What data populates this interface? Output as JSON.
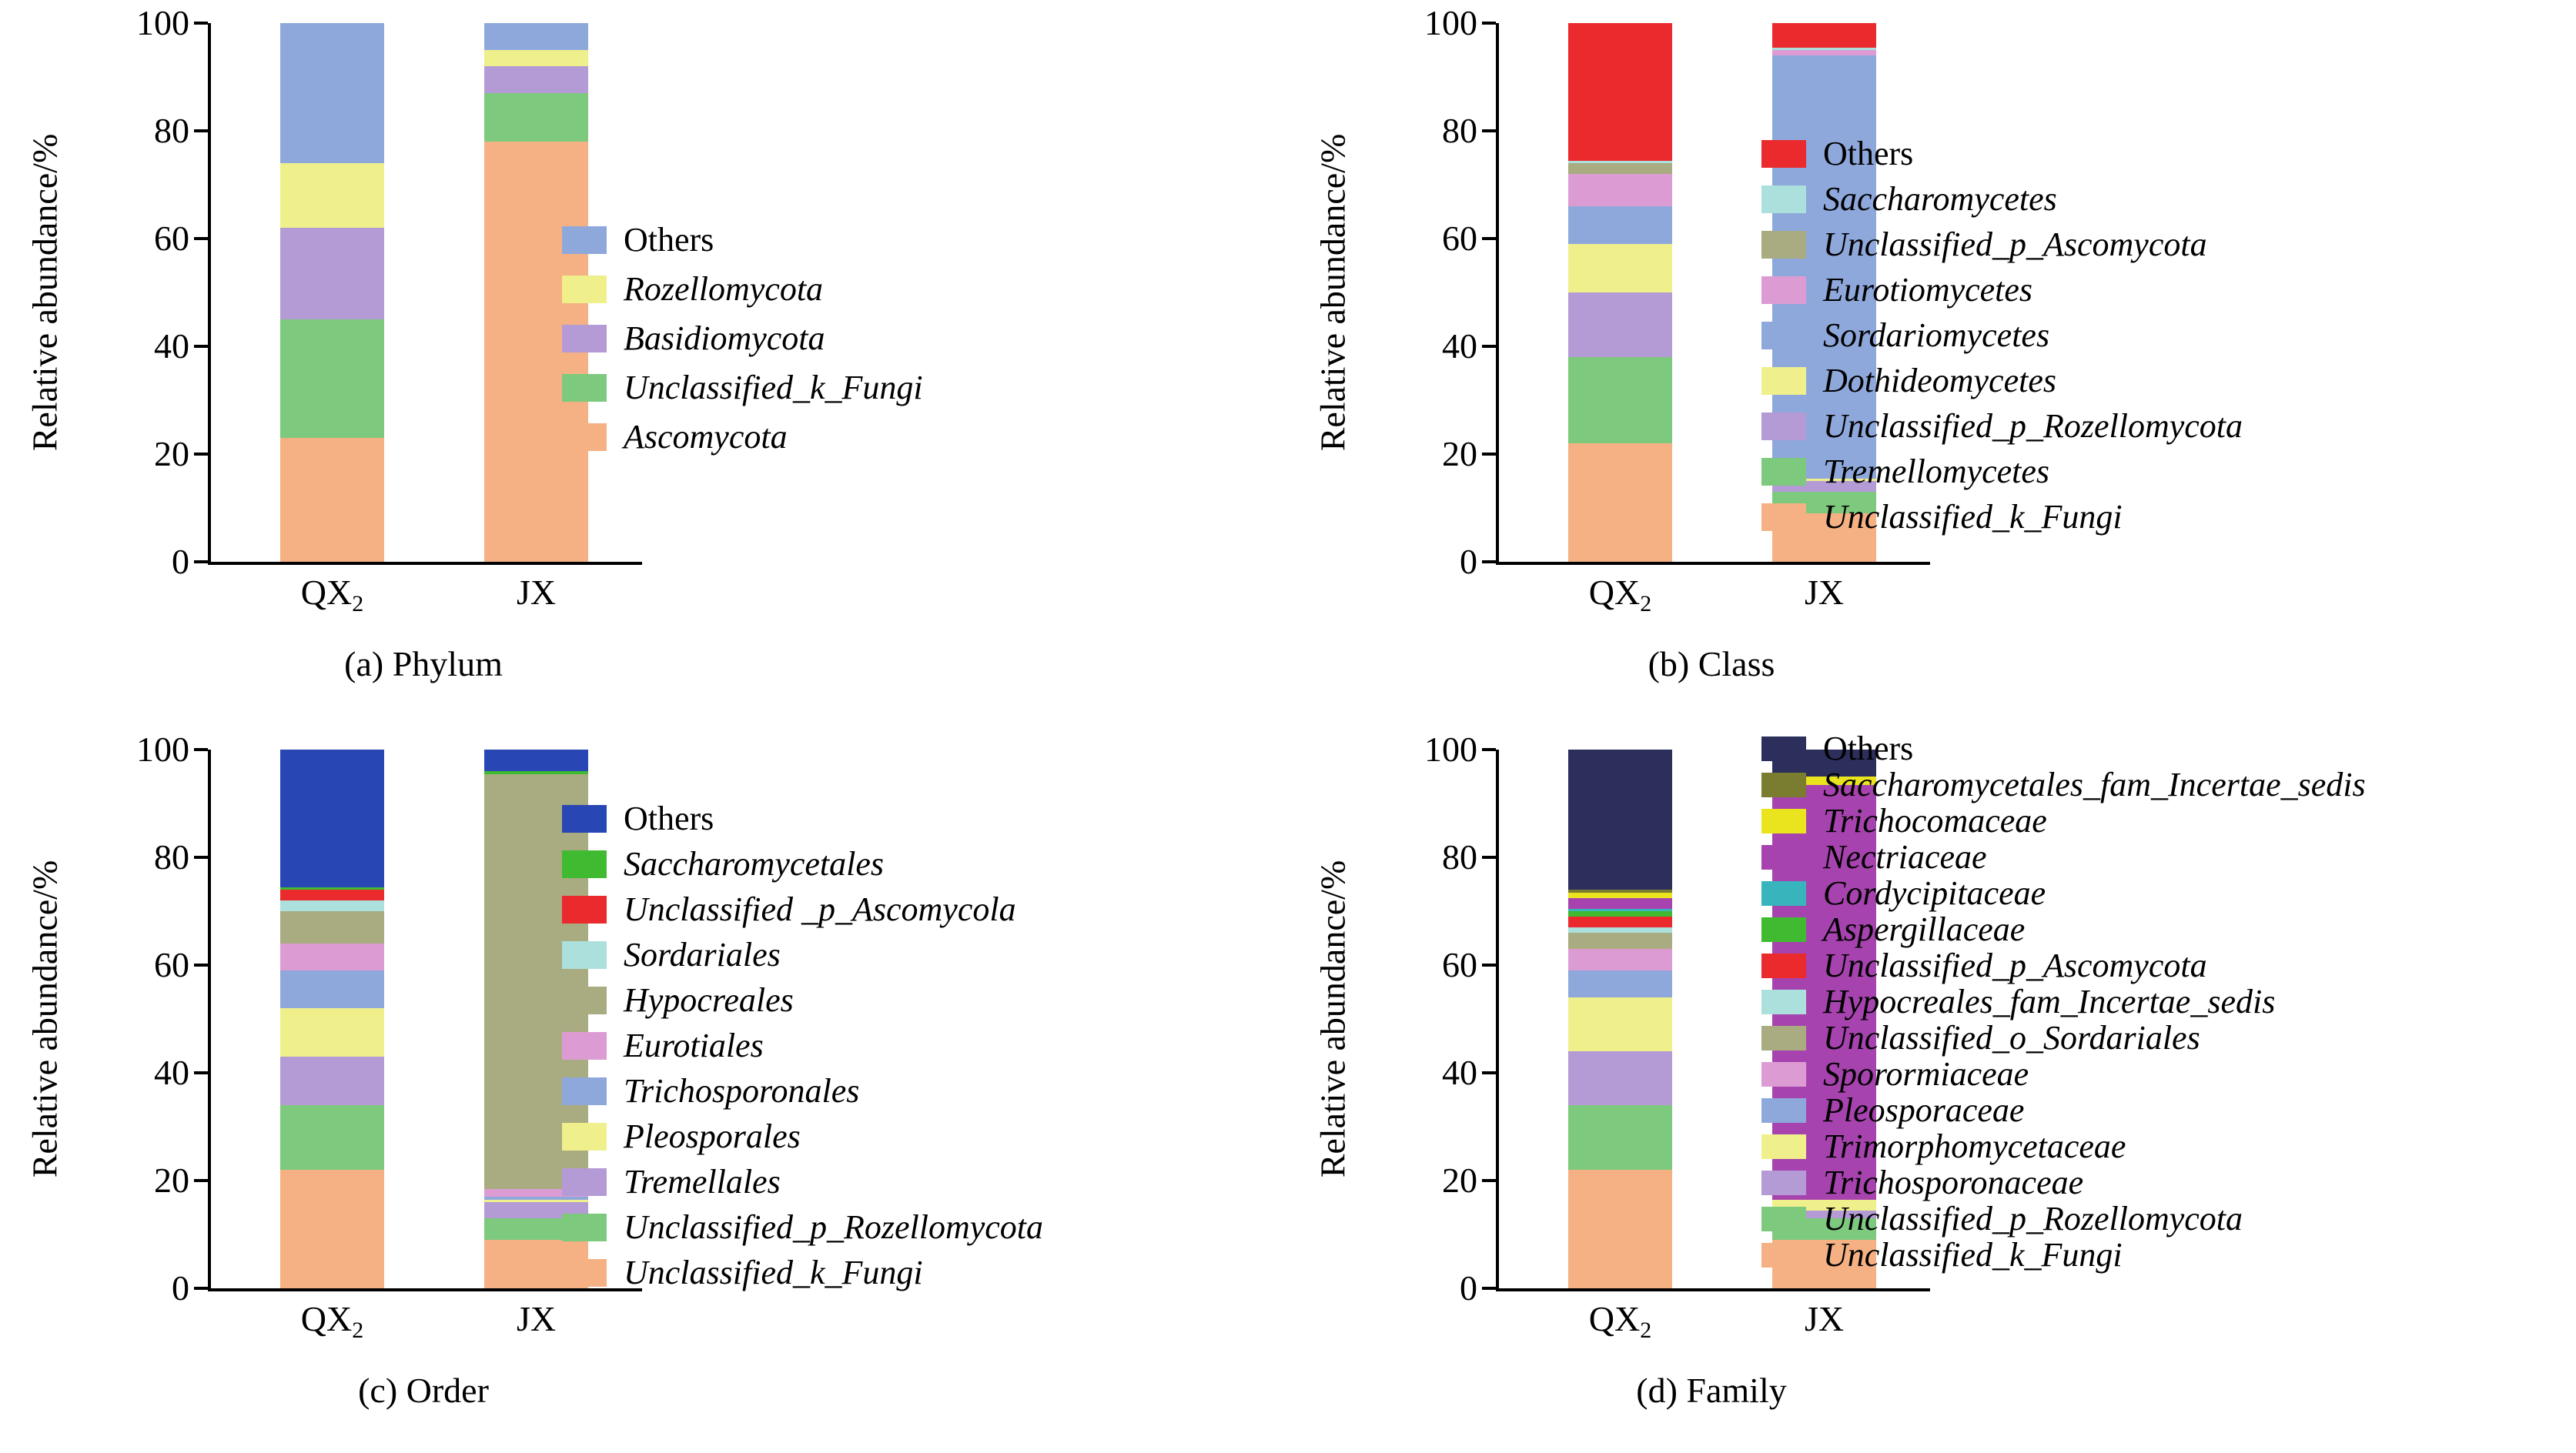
{
  "figure": {
    "background": "#FFFFFF",
    "text_color": "#000000"
  },
  "chart_data": [
    {
      "id": "phylum",
      "type": "bar",
      "stacked": true,
      "caption": "(a) Phylum",
      "ylabel": "Relative abundance/%",
      "ylim": [
        0,
        100
      ],
      "yticks": [
        0,
        20,
        40,
        60,
        80,
        100
      ],
      "grid": false,
      "legend_position": "right",
      "stack_order": "bottom_to_top",
      "categories": [
        {
          "base": "QX",
          "sub": "2"
        },
        {
          "base": "JX",
          "sub": ""
        }
      ],
      "series": [
        {
          "name": "Ascomycota",
          "italic": true,
          "color": "#F5B183",
          "values": [
            23,
            78
          ]
        },
        {
          "name": "Unclassified_k_Fungi",
          "italic": true,
          "color": "#7DC97E",
          "values": [
            22,
            9
          ]
        },
        {
          "name": "Basidiomycota",
          "italic": true,
          "color": "#B49BD5",
          "values": [
            17,
            5
          ]
        },
        {
          "name": "Rozellomycota",
          "italic": true,
          "color": "#EFEF8B",
          "values": [
            12,
            3
          ]
        },
        {
          "name": "Others",
          "italic": false,
          "color": "#8FA8DC",
          "values": [
            26,
            5
          ]
        }
      ]
    },
    {
      "id": "class",
      "type": "bar",
      "stacked": true,
      "caption": "(b) Class",
      "ylabel": "Relative abundance/%",
      "ylim": [
        0,
        100
      ],
      "yticks": [
        0,
        20,
        40,
        60,
        80,
        100
      ],
      "grid": false,
      "legend_position": "right",
      "stack_order": "bottom_to_top",
      "categories": [
        {
          "base": "QX",
          "sub": "2"
        },
        {
          "base": "JX",
          "sub": ""
        }
      ],
      "series": [
        {
          "name": "Unclassified_k_Fungi",
          "italic": true,
          "color": "#F5B183",
          "values": [
            22,
            9
          ]
        },
        {
          "name": "Tremellomycetes",
          "italic": true,
          "color": "#7DC97E",
          "values": [
            16,
            4
          ]
        },
        {
          "name": "Unclassified_p_Rozellomycota",
          "italic": true,
          "color": "#B49BD5",
          "values": [
            12,
            2
          ]
        },
        {
          "name": "Dothideomycetes",
          "italic": true,
          "color": "#EFEF8B",
          "values": [
            9,
            0.5
          ]
        },
        {
          "name": "Sordariomycetes",
          "italic": true,
          "color": "#8FA8DC",
          "values": [
            7,
            78.5
          ]
        },
        {
          "name": "Eurotiomycetes",
          "italic": true,
          "color": "#DC9CD3",
          "values": [
            6,
            1
          ]
        },
        {
          "name": "Unclassified_p_Ascomycota",
          "italic": true,
          "color": "#A9AB80",
          "values": [
            2,
            0
          ]
        },
        {
          "name": "Saccharomycetes",
          "italic": true,
          "color": "#ABE0DD",
          "values": [
            0.5,
            0.5
          ]
        },
        {
          "name": "Others",
          "italic": false,
          "color": "#EB2A2E",
          "values": [
            25.5,
            4.5
          ]
        }
      ]
    },
    {
      "id": "order",
      "type": "bar",
      "stacked": true,
      "caption": "(c) Order",
      "ylabel": "Relative abundance/%",
      "ylim": [
        0,
        100
      ],
      "yticks": [
        0,
        20,
        40,
        60,
        80,
        100
      ],
      "grid": false,
      "legend_position": "right",
      "stack_order": "bottom_to_top",
      "categories": [
        {
          "base": "QX",
          "sub": "2"
        },
        {
          "base": "JX",
          "sub": ""
        }
      ],
      "series": [
        {
          "name": "Unclassified_k_Fungi",
          "italic": true,
          "color": "#F5B183",
          "values": [
            22,
            9
          ]
        },
        {
          "name": "Unclassified_p_Rozellomycota",
          "italic": true,
          "color": "#7DC97E",
          "values": [
            12,
            4
          ]
        },
        {
          "name": "Tremellales",
          "italic": true,
          "color": "#B49BD5",
          "values": [
            9,
            3
          ]
        },
        {
          "name": "Pleosporales",
          "italic": true,
          "color": "#EFEF8B",
          "values": [
            9,
            0.5
          ]
        },
        {
          "name": "Trichosporonales",
          "italic": true,
          "color": "#8FA8DC",
          "values": [
            7,
            0.5
          ]
        },
        {
          "name": "Eurotiales",
          "italic": true,
          "color": "#DC9CD3",
          "values": [
            5,
            1.5
          ]
        },
        {
          "name": "Hypocreales",
          "italic": true,
          "color": "#A9AB80",
          "values": [
            6,
            77
          ]
        },
        {
          "name": "Sordariales",
          "italic": true,
          "color": "#ABE0DD",
          "values": [
            2,
            0
          ]
        },
        {
          "name": "Unclassified _p_Ascomycola",
          "italic": true,
          "color": "#EB2A2E",
          "values": [
            2,
            0
          ]
        },
        {
          "name": "Saccharomycetales",
          "italic": true,
          "color": "#3FBA31",
          "values": [
            0.5,
            0.5
          ]
        },
        {
          "name": "Others",
          "italic": false,
          "color": "#2847B4",
          "values": [
            25.5,
            4
          ]
        }
      ]
    },
    {
      "id": "family",
      "type": "bar",
      "stacked": true,
      "caption": "(d) Family",
      "ylabel": "Relative abundance/%",
      "ylim": [
        0,
        100
      ],
      "yticks": [
        0,
        20,
        40,
        60,
        80,
        100
      ],
      "grid": false,
      "legend_position": "right",
      "stack_order": "bottom_to_top",
      "categories": [
        {
          "base": "QX",
          "sub": "2"
        },
        {
          "base": "JX",
          "sub": ""
        }
      ],
      "series": [
        {
          "name": "Unclassified_k_Fungi",
          "italic": true,
          "color": "#F5B183",
          "values": [
            22,
            9
          ]
        },
        {
          "name": "Unclassified_p_Rozellomycota",
          "italic": true,
          "color": "#7DC97E",
          "values": [
            12,
            4
          ]
        },
        {
          "name": "Trichosporonaceae",
          "italic": true,
          "color": "#B49BD5",
          "values": [
            10,
            1.5
          ]
        },
        {
          "name": "Trimorphomycetaceae",
          "italic": true,
          "color": "#EFEF8B",
          "values": [
            10,
            2
          ]
        },
        {
          "name": "Pleosporaceae",
          "italic": true,
          "color": "#8FA8DC",
          "values": [
            5,
            0
          ]
        },
        {
          "name": "Sporormiaceae",
          "italic": true,
          "color": "#DC9CD3",
          "values": [
            4,
            0
          ]
        },
        {
          "name": "Unclassified_o_Sordariales",
          "italic": true,
          "color": "#A9AB80",
          "values": [
            3,
            0
          ]
        },
        {
          "name": "Hypocreales_fam_Incertae_sedis",
          "italic": true,
          "color": "#ABE0DD",
          "values": [
            1,
            0
          ]
        },
        {
          "name": "Unclassified_p_Ascomycota",
          "italic": true,
          "color": "#EB2A2E",
          "values": [
            2,
            0
          ]
        },
        {
          "name": "Aspergillaceae",
          "italic": true,
          "color": "#3FBA31",
          "values": [
            1,
            0
          ]
        },
        {
          "name": "Cordycipitaceae",
          "italic": true,
          "color": "#38B4BD",
          "values": [
            0.5,
            0
          ]
        },
        {
          "name": "Nectriaceae",
          "italic": true,
          "color": "#A643AE",
          "values": [
            2,
            77
          ]
        },
        {
          "name": "Trichocomaceae",
          "italic": true,
          "color": "#EAE41F",
          "values": [
            1,
            1.5
          ]
        },
        {
          "name": "Saccharomycetales_fam_Incertae_sedis",
          "italic": true,
          "color": "#7A7C30",
          "values": [
            0.5,
            0
          ]
        },
        {
          "name": "Others",
          "italic": false,
          "color": "#2C2E5B",
          "values": [
            26,
            5
          ]
        }
      ]
    }
  ]
}
